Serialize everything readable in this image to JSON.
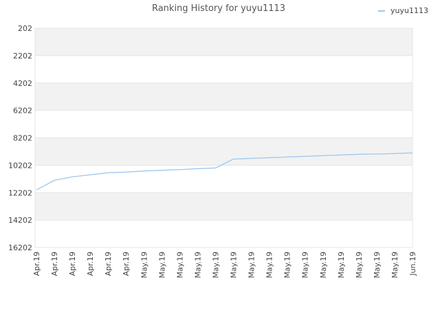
{
  "chart_data": {
    "type": "line",
    "title": "Ranking History for yuyu1113",
    "categories": [
      "Apr.19",
      "Apr.19",
      "Apr.19",
      "Apr.19",
      "Apr.19",
      "Apr.19",
      "May.19",
      "May.19",
      "May.19",
      "May.19",
      "May.19",
      "May.19",
      "May.19",
      "May.19",
      "May.19",
      "May.19",
      "May.19",
      "May.19",
      "May.19",
      "May.19",
      "May.19",
      "Jun.19"
    ],
    "series": [
      {
        "name": "yuyu1113",
        "color": "#9cc7ee",
        "values": [
          12000,
          11300,
          11050,
          10900,
          10750,
          10700,
          10620,
          10570,
          10520,
          10450,
          10400,
          9750,
          9700,
          9650,
          9600,
          9550,
          9500,
          9450,
          9400,
          9380,
          9350,
          9300
        ]
      }
    ],
    "ylim": [
      202,
      16202
    ],
    "y_inverted": true,
    "yticks": [
      202,
      2202,
      4202,
      6202,
      8202,
      10202,
      12202,
      14202,
      16202
    ],
    "grid": true,
    "legend": "top-right"
  }
}
